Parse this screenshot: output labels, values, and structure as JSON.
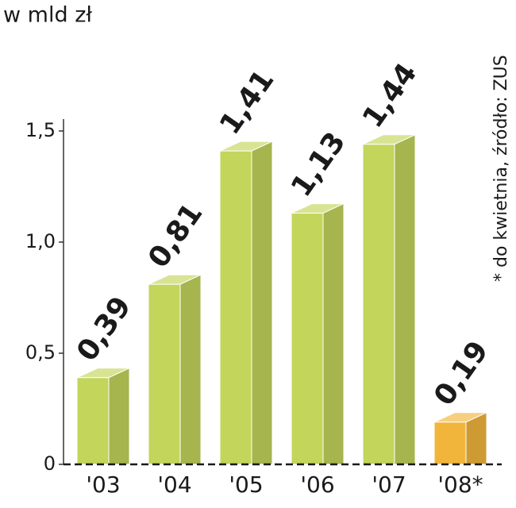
{
  "chart_data": {
    "type": "bar3d",
    "title": "w mld zł",
    "note": "* do kwietnia, źródło: ZUS",
    "categories": [
      "'03",
      "'04",
      "'05",
      "'06",
      "'07",
      "'08*"
    ],
    "values": [
      0.39,
      0.81,
      1.41,
      1.13,
      1.44,
      0.19
    ],
    "value_labels": [
      "0,39",
      "0,81",
      "1,41",
      "1,13",
      "1,44",
      "0,19"
    ],
    "colors": [
      "#c3d55b",
      "#c3d55b",
      "#c3d55b",
      "#c3d55b",
      "#c3d55b",
      "#f2b53c"
    ],
    "label_colors": [
      "#1a1a1a",
      "#1a1a1a",
      "#1a1a1a",
      "#1a1a1a",
      "#c8102e",
      "#1a1a1a"
    ],
    "ylim": [
      0,
      1.5
    ],
    "yticks": [
      0,
      {
        "value": 0.5,
        "label": "0,5"
      },
      {
        "value": 1.0,
        "label": "1,0"
      },
      {
        "value": 1.5,
        "label": "1,5"
      }
    ]
  }
}
